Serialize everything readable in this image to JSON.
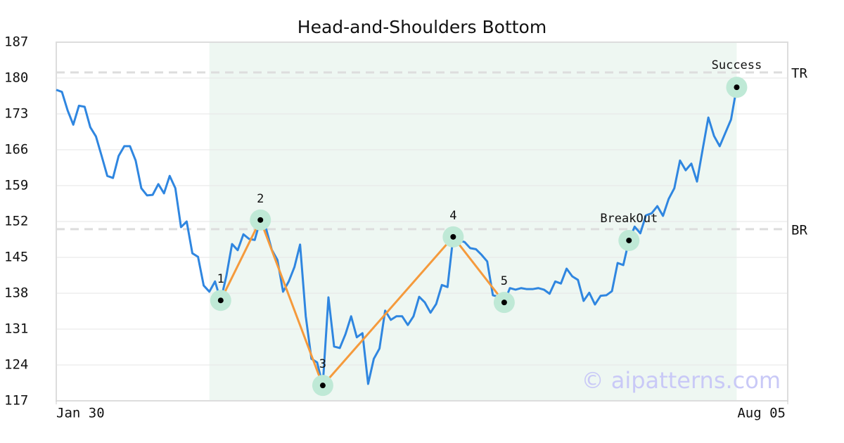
{
  "chart_data": {
    "type": "line",
    "title": "Head-and-Shoulders Bottom",
    "x": [
      0,
      1,
      2,
      3,
      4,
      5,
      6,
      7,
      8,
      9,
      10,
      11,
      12,
      13,
      14,
      15,
      16,
      17,
      18,
      19,
      20,
      21,
      22,
      23,
      24,
      25,
      26,
      27,
      28,
      29,
      30,
      31,
      32,
      33,
      34,
      35,
      36,
      37,
      38,
      39,
      40,
      41,
      42,
      43,
      44,
      45,
      46,
      47,
      48,
      49,
      50,
      51,
      52,
      53,
      54,
      55,
      56,
      57,
      58,
      59,
      60,
      61,
      62,
      63,
      64,
      65,
      66,
      67,
      68,
      69,
      70,
      71,
      72,
      73,
      74,
      75,
      76,
      77,
      78,
      79,
      80,
      81,
      82,
      83,
      84,
      85,
      86,
      87,
      88,
      89,
      90,
      91,
      92,
      93,
      94,
      95,
      96,
      97,
      98,
      99,
      100,
      101,
      102,
      103,
      104,
      105,
      106,
      107,
      108,
      109,
      110,
      111,
      112,
      113,
      114,
      115,
      116,
      117,
      118,
      119,
      120
    ],
    "values": [
      177.7,
      177.3,
      173.7,
      170.9,
      174.6,
      174.4,
      170.4,
      168.6,
      164.8,
      160.9,
      160.5,
      164.8,
      166.7,
      166.7,
      163.9,
      158.5,
      157.1,
      157.2,
      159.3,
      157.5,
      160.9,
      158.5,
      150.9,
      152.0,
      145.8,
      145.1,
      139.5,
      138.3,
      140.3,
      136.6,
      141.4,
      147.6,
      146.4,
      149.5,
      148.6,
      148.4,
      152.3,
      150.6,
      146.5,
      144.5,
      138.3,
      140.3,
      143.1,
      147.5,
      133.5,
      125.2,
      124.5,
      120.0,
      137.2,
      127.6,
      127.3,
      130.0,
      133.5,
      129.4,
      130.2,
      120.3,
      125.2,
      127.2,
      134.6,
      132.8,
      133.5,
      133.5,
      131.8,
      133.5,
      137.3,
      136.2,
      134.2,
      135.9,
      139.6,
      139.2,
      149.0,
      148.3,
      148.0,
      146.8,
      146.6,
      145.5,
      144.2,
      137.6,
      137.3,
      136.2,
      139.0,
      138.7,
      139.0,
      138.8,
      138.8,
      139.0,
      138.7,
      137.9,
      140.3,
      139.9,
      142.8,
      141.3,
      140.6,
      136.5,
      138.1,
      135.8,
      137.5,
      137.6,
      138.4,
      143.9,
      143.5,
      148.3,
      151.0,
      149.7,
      153.2,
      153.6,
      155.0,
      153.1,
      156.4,
      158.5,
      163.9,
      162.0,
      163.3,
      159.8,
      166.1,
      172.3,
      168.7,
      166.7,
      169.3,
      171.9,
      178.2
    ],
    "color": "#2f86e0",
    "pattern": {
      "color": "#f59a3c",
      "points": [
        {
          "label": "1",
          "x": 29,
          "value": 136.6
        },
        {
          "label": "2",
          "x": 36,
          "value": 152.3
        },
        {
          "label": "3",
          "x": 47,
          "value": 120.0
        },
        {
          "label": "4",
          "x": 70,
          "value": 149.0
        },
        {
          "label": "5",
          "x": 79,
          "value": 136.2
        }
      ]
    },
    "signals": [
      {
        "label": "BreakOut",
        "x": 101,
        "value": 148.3
      },
      {
        "label": "Success",
        "x": 120,
        "value": 178.2
      }
    ],
    "marker_color": "#bfe9d6",
    "hlines": [
      {
        "label": "TR",
        "value": 181.1
      },
      {
        "label": "BR",
        "value": 150.5
      }
    ],
    "shade": {
      "x": [
        27,
        120
      ],
      "color": "#eef7f2"
    },
    "watermark": "© aipatterns.com",
    "xlim": [
      0,
      129
    ],
    "xticks": [
      {
        "value": 0,
        "label": "Jan 30"
      },
      {
        "value": 129,
        "label": "Aug 05"
      }
    ],
    "ylim": [
      117,
      187
    ],
    "yticks": [
      117,
      124,
      131,
      138,
      145,
      152,
      159,
      166,
      173,
      180,
      187
    ],
    "grid": true
  }
}
